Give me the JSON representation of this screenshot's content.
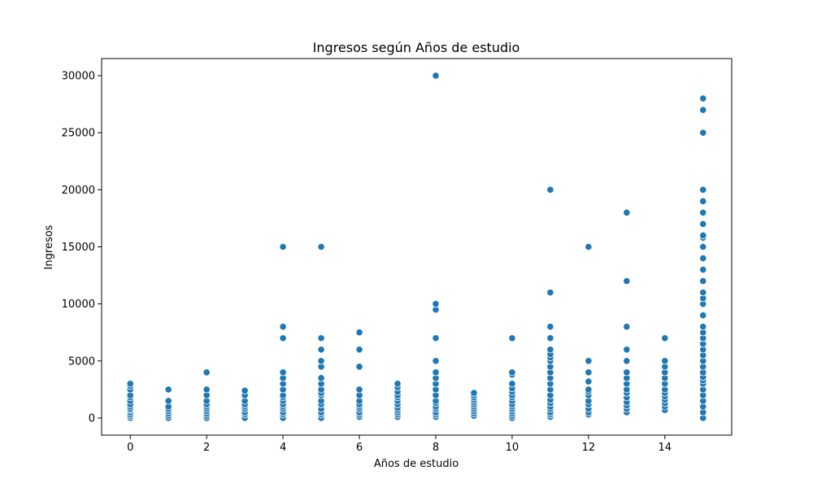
{
  "chart_data": {
    "type": "scatter",
    "title": "Ingresos según Años de estudio",
    "xlabel": "Años de estudio",
    "ylabel": "Ingresos",
    "xlim": [
      -0.75,
      15.75
    ],
    "ylim": [
      -1500,
      31500
    ],
    "x_ticks": [
      0,
      2,
      4,
      6,
      8,
      10,
      12,
      14
    ],
    "y_ticks": [
      0,
      5000,
      10000,
      15000,
      20000,
      25000,
      30000
    ],
    "grid": false,
    "legend": "none",
    "marker_color": "#1f77b4",
    "points": [
      {
        "x": 0,
        "y": 0
      },
      {
        "x": 0,
        "y": 150
      },
      {
        "x": 0,
        "y": 300
      },
      {
        "x": 0,
        "y": 500
      },
      {
        "x": 0,
        "y": 700
      },
      {
        "x": 0,
        "y": 800
      },
      {
        "x": 0,
        "y": 1000
      },
      {
        "x": 0,
        "y": 1200
      },
      {
        "x": 0,
        "y": 1500
      },
      {
        "x": 0,
        "y": 1800
      },
      {
        "x": 0,
        "y": 2000
      },
      {
        "x": 0,
        "y": 2500
      },
      {
        "x": 0,
        "y": 2800
      },
      {
        "x": 0,
        "y": 3000
      },
      {
        "x": 1,
        "y": 0
      },
      {
        "x": 1,
        "y": 200
      },
      {
        "x": 1,
        "y": 400
      },
      {
        "x": 1,
        "y": 600
      },
      {
        "x": 1,
        "y": 800
      },
      {
        "x": 1,
        "y": 1000
      },
      {
        "x": 1,
        "y": 1500
      },
      {
        "x": 1,
        "y": 2500
      },
      {
        "x": 2,
        "y": 0
      },
      {
        "x": 2,
        "y": 200
      },
      {
        "x": 2,
        "y": 400
      },
      {
        "x": 2,
        "y": 600
      },
      {
        "x": 2,
        "y": 800
      },
      {
        "x": 2,
        "y": 1000
      },
      {
        "x": 2,
        "y": 1200
      },
      {
        "x": 2,
        "y": 1500
      },
      {
        "x": 2,
        "y": 2000
      },
      {
        "x": 2,
        "y": 2500
      },
      {
        "x": 2,
        "y": 4000
      },
      {
        "x": 3,
        "y": 0
      },
      {
        "x": 3,
        "y": 300
      },
      {
        "x": 3,
        "y": 500
      },
      {
        "x": 3,
        "y": 800
      },
      {
        "x": 3,
        "y": 1000
      },
      {
        "x": 3,
        "y": 1200
      },
      {
        "x": 3,
        "y": 1500
      },
      {
        "x": 3,
        "y": 2000
      },
      {
        "x": 3,
        "y": 2400
      },
      {
        "x": 4,
        "y": 0
      },
      {
        "x": 4,
        "y": 300
      },
      {
        "x": 4,
        "y": 500
      },
      {
        "x": 4,
        "y": 800
      },
      {
        "x": 4,
        "y": 1000
      },
      {
        "x": 4,
        "y": 1200
      },
      {
        "x": 4,
        "y": 1500
      },
      {
        "x": 4,
        "y": 1800
      },
      {
        "x": 4,
        "y": 2000
      },
      {
        "x": 4,
        "y": 2500
      },
      {
        "x": 4,
        "y": 3000
      },
      {
        "x": 4,
        "y": 3500
      },
      {
        "x": 4,
        "y": 4000
      },
      {
        "x": 4,
        "y": 7000
      },
      {
        "x": 4,
        "y": 8000
      },
      {
        "x": 4,
        "y": 15000
      },
      {
        "x": 5,
        "y": 0
      },
      {
        "x": 5,
        "y": 300
      },
      {
        "x": 5,
        "y": 500
      },
      {
        "x": 5,
        "y": 800
      },
      {
        "x": 5,
        "y": 1200
      },
      {
        "x": 5,
        "y": 1500
      },
      {
        "x": 5,
        "y": 2000
      },
      {
        "x": 5,
        "y": 2200
      },
      {
        "x": 5,
        "y": 2500
      },
      {
        "x": 5,
        "y": 3000
      },
      {
        "x": 5,
        "y": 3500
      },
      {
        "x": 5,
        "y": 4500
      },
      {
        "x": 5,
        "y": 5000
      },
      {
        "x": 5,
        "y": 6000
      },
      {
        "x": 5,
        "y": 7000
      },
      {
        "x": 5,
        "y": 15000
      },
      {
        "x": 6,
        "y": 100
      },
      {
        "x": 6,
        "y": 300
      },
      {
        "x": 6,
        "y": 500
      },
      {
        "x": 6,
        "y": 800
      },
      {
        "x": 6,
        "y": 1000
      },
      {
        "x": 6,
        "y": 1200
      },
      {
        "x": 6,
        "y": 1500
      },
      {
        "x": 6,
        "y": 2000
      },
      {
        "x": 6,
        "y": 2500
      },
      {
        "x": 6,
        "y": 4500
      },
      {
        "x": 6,
        "y": 6000
      },
      {
        "x": 6,
        "y": 7500
      },
      {
        "x": 7,
        "y": 100
      },
      {
        "x": 7,
        "y": 300
      },
      {
        "x": 7,
        "y": 500
      },
      {
        "x": 7,
        "y": 700
      },
      {
        "x": 7,
        "y": 900
      },
      {
        "x": 7,
        "y": 1200
      },
      {
        "x": 7,
        "y": 1500
      },
      {
        "x": 7,
        "y": 1800
      },
      {
        "x": 7,
        "y": 2000
      },
      {
        "x": 7,
        "y": 2300
      },
      {
        "x": 7,
        "y": 2700
      },
      {
        "x": 7,
        "y": 3000
      },
      {
        "x": 8,
        "y": 100
      },
      {
        "x": 8,
        "y": 300
      },
      {
        "x": 8,
        "y": 500
      },
      {
        "x": 8,
        "y": 800
      },
      {
        "x": 8,
        "y": 1000
      },
      {
        "x": 8,
        "y": 1300
      },
      {
        "x": 8,
        "y": 1500
      },
      {
        "x": 8,
        "y": 2000
      },
      {
        "x": 8,
        "y": 2500
      },
      {
        "x": 8,
        "y": 3000
      },
      {
        "x": 8,
        "y": 3500
      },
      {
        "x": 8,
        "y": 4000
      },
      {
        "x": 8,
        "y": 5000
      },
      {
        "x": 8,
        "y": 7000
      },
      {
        "x": 8,
        "y": 9500
      },
      {
        "x": 8,
        "y": 10000
      },
      {
        "x": 8,
        "y": 30000
      },
      {
        "x": 9,
        "y": 200
      },
      {
        "x": 9,
        "y": 400
      },
      {
        "x": 9,
        "y": 600
      },
      {
        "x": 9,
        "y": 800
      },
      {
        "x": 9,
        "y": 1000
      },
      {
        "x": 9,
        "y": 1200
      },
      {
        "x": 9,
        "y": 1400
      },
      {
        "x": 9,
        "y": 1600
      },
      {
        "x": 9,
        "y": 1800
      },
      {
        "x": 9,
        "y": 2000
      },
      {
        "x": 9,
        "y": 2200
      },
      {
        "x": 10,
        "y": 0
      },
      {
        "x": 10,
        "y": 200
      },
      {
        "x": 10,
        "y": 400
      },
      {
        "x": 10,
        "y": 600
      },
      {
        "x": 10,
        "y": 800
      },
      {
        "x": 10,
        "y": 1000
      },
      {
        "x": 10,
        "y": 1200
      },
      {
        "x": 10,
        "y": 1500
      },
      {
        "x": 10,
        "y": 1800
      },
      {
        "x": 10,
        "y": 2000
      },
      {
        "x": 10,
        "y": 2300
      },
      {
        "x": 10,
        "y": 2600
      },
      {
        "x": 10,
        "y": 3000
      },
      {
        "x": 10,
        "y": 3800
      },
      {
        "x": 10,
        "y": 4000
      },
      {
        "x": 10,
        "y": 7000
      },
      {
        "x": 11,
        "y": 100
      },
      {
        "x": 11,
        "y": 300
      },
      {
        "x": 11,
        "y": 500
      },
      {
        "x": 11,
        "y": 800
      },
      {
        "x": 11,
        "y": 1000
      },
      {
        "x": 11,
        "y": 1300
      },
      {
        "x": 11,
        "y": 1600
      },
      {
        "x": 11,
        "y": 2000
      },
      {
        "x": 11,
        "y": 2500
      },
      {
        "x": 11,
        "y": 3000
      },
      {
        "x": 11,
        "y": 3500
      },
      {
        "x": 11,
        "y": 4000
      },
      {
        "x": 11,
        "y": 4500
      },
      {
        "x": 11,
        "y": 5000
      },
      {
        "x": 11,
        "y": 5300
      },
      {
        "x": 11,
        "y": 5600
      },
      {
        "x": 11,
        "y": 6000
      },
      {
        "x": 11,
        "y": 7000
      },
      {
        "x": 11,
        "y": 8000
      },
      {
        "x": 11,
        "y": 11000
      },
      {
        "x": 11,
        "y": 20000
      },
      {
        "x": 12,
        "y": 300
      },
      {
        "x": 12,
        "y": 500
      },
      {
        "x": 12,
        "y": 800
      },
      {
        "x": 12,
        "y": 1200
      },
      {
        "x": 12,
        "y": 1500
      },
      {
        "x": 12,
        "y": 2000
      },
      {
        "x": 12,
        "y": 2300
      },
      {
        "x": 12,
        "y": 2500
      },
      {
        "x": 12,
        "y": 3200
      },
      {
        "x": 12,
        "y": 4000
      },
      {
        "x": 12,
        "y": 5000
      },
      {
        "x": 12,
        "y": 15000
      },
      {
        "x": 13,
        "y": 500
      },
      {
        "x": 13,
        "y": 800
      },
      {
        "x": 13,
        "y": 1100
      },
      {
        "x": 13,
        "y": 1400
      },
      {
        "x": 13,
        "y": 1800
      },
      {
        "x": 13,
        "y": 2200
      },
      {
        "x": 13,
        "y": 2500
      },
      {
        "x": 13,
        "y": 3000
      },
      {
        "x": 13,
        "y": 3500
      },
      {
        "x": 13,
        "y": 4000
      },
      {
        "x": 13,
        "y": 5000
      },
      {
        "x": 13,
        "y": 6000
      },
      {
        "x": 13,
        "y": 8000
      },
      {
        "x": 13,
        "y": 12000
      },
      {
        "x": 13,
        "y": 18000
      },
      {
        "x": 14,
        "y": 700
      },
      {
        "x": 14,
        "y": 1000
      },
      {
        "x": 14,
        "y": 1300
      },
      {
        "x": 14,
        "y": 1600
      },
      {
        "x": 14,
        "y": 1900
      },
      {
        "x": 14,
        "y": 2200
      },
      {
        "x": 14,
        "y": 2500
      },
      {
        "x": 14,
        "y": 3000
      },
      {
        "x": 14,
        "y": 3500
      },
      {
        "x": 14,
        "y": 4000
      },
      {
        "x": 14,
        "y": 4500
      },
      {
        "x": 14,
        "y": 5000
      },
      {
        "x": 14,
        "y": 7000
      },
      {
        "x": 15,
        "y": 0
      },
      {
        "x": 15,
        "y": 500
      },
      {
        "x": 15,
        "y": 1000
      },
      {
        "x": 15,
        "y": 1500
      },
      {
        "x": 15,
        "y": 2000
      },
      {
        "x": 15,
        "y": 2500
      },
      {
        "x": 15,
        "y": 3000
      },
      {
        "x": 15,
        "y": 3300
      },
      {
        "x": 15,
        "y": 3600
      },
      {
        "x": 15,
        "y": 4000
      },
      {
        "x": 15,
        "y": 4500
      },
      {
        "x": 15,
        "y": 5000
      },
      {
        "x": 15,
        "y": 5500
      },
      {
        "x": 15,
        "y": 6000
      },
      {
        "x": 15,
        "y": 6500
      },
      {
        "x": 15,
        "y": 7000
      },
      {
        "x": 15,
        "y": 7500
      },
      {
        "x": 15,
        "y": 8000
      },
      {
        "x": 15,
        "y": 9000
      },
      {
        "x": 15,
        "y": 10000
      },
      {
        "x": 15,
        "y": 10500
      },
      {
        "x": 15,
        "y": 11000
      },
      {
        "x": 15,
        "y": 12000
      },
      {
        "x": 15,
        "y": 13000
      },
      {
        "x": 15,
        "y": 14000
      },
      {
        "x": 15,
        "y": 15000
      },
      {
        "x": 15,
        "y": 15800
      },
      {
        "x": 15,
        "y": 16000
      },
      {
        "x": 15,
        "y": 17000
      },
      {
        "x": 15,
        "y": 18000
      },
      {
        "x": 15,
        "y": 19000
      },
      {
        "x": 15,
        "y": 20000
      },
      {
        "x": 15,
        "y": 25000
      },
      {
        "x": 15,
        "y": 27000
      },
      {
        "x": 15,
        "y": 28000
      }
    ]
  }
}
